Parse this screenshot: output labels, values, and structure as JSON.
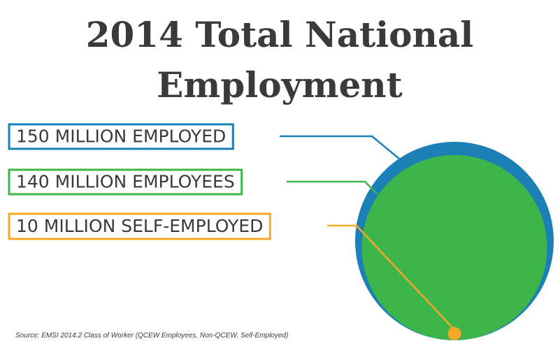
{
  "chart_data": {
    "type": "nested-circles",
    "title": "2014 Total National Employment",
    "series": [
      {
        "name": "150 MILLION EMPLOYED",
        "color": "#1a80b6",
        "values": [
          150
        ]
      },
      {
        "name": "140 MILLION EMPLOYEES",
        "color": "#3db54a",
        "values": [
          140
        ]
      },
      {
        "name": "10 MILLION SELF-EMPLOYED",
        "color": "#f7a823",
        "values": [
          10
        ]
      }
    ],
    "source": "Source: EMSI 2014.2 Class of Worker (QCEW Employees, Non-QCEW, Self-Employed)"
  }
}
